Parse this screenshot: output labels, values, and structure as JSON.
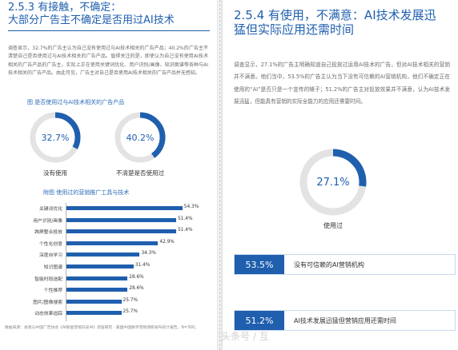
{
  "left": {
    "section_title_line1": "2.5.3 有接触，不确定：",
    "section_title_line2": "大部分广告主不确定是否用过AI技术",
    "paragraph": "调查显示，32.7%的广告主认为自己没有使用过与AI技术相关的广告产品；40.2%的广告主不清楚自己是否使用过与AI技术相关的广告产品。值得关注的是，即使认为自己没有使用AI技术相关的广告产品的广告主，实际上正在使用关键词优化、用户识别/画像、知识图谱等各种与AI技术相关的广告产品。由此可见，广告主对自己是否使用AI技术相关的广告产品并无感知。",
    "figure1_title": "图 是否使用过与AI技术相关的广告产品",
    "donuts": [
      {
        "value_text": "32.7%",
        "fraction": 0.327,
        "caption": "没有使用"
      },
      {
        "value_text": "40.2%",
        "fraction": 0.402,
        "caption": "不清楚是否使用过"
      }
    ],
    "figure2_title": "附图 使用过的营销推广工具与技术",
    "bars": [
      {
        "label": "关键词优化",
        "value": 54.3,
        "value_text": "54.3%"
      },
      {
        "label": "用户识别/画像",
        "value": 51.4,
        "value_text": "51.4%"
      },
      {
        "label": "跨屏整合投放",
        "value": 51.4,
        "value_text": "51.4%"
      },
      {
        "label": "个性化创意",
        "value": 42.9,
        "value_text": "42.9%"
      },
      {
        "label": "深度自学习",
        "value": 34.3,
        "value_text": "34.3%"
      },
      {
        "label": "知识图谱",
        "value": 31.4,
        "value_text": "31.4%"
      },
      {
        "label": "智能时段选配",
        "value": 28.6,
        "value_text": "28.6%"
      },
      {
        "label": "个性推荐",
        "value": 28.6,
        "value_text": "28.6%"
      },
      {
        "label": "图片/图像搜索",
        "value": 25.7,
        "value_text": "25.7%"
      },
      {
        "label": "动态效果追踪",
        "value": 25.7,
        "value_text": "25.7%"
      }
    ],
    "bar_max": 60,
    "footnote": "数据来源：易观与中国广告协会《AI赋能营销白皮书》调查研究 · 美国中国数字营销调研发布统计报告，N=300。"
  },
  "right": {
    "section_title_line1": "2.5.4 有使用，不满意：AI技术发展迅",
    "section_title_line2": "猛但实际应用还需时间",
    "paragraph": "调查显示，27.1%的广告主明确知道自己投放过运用AI技术的广告，但对AI技术相关的营销并不满意。他们当中，53.5%的广告主认为当下没有可信赖的AI营销机构，他们不确定正在使用的“AI”是否只是一个宣传的噱子；51.2%的广告主对投放效果并不满意，认为AI技术发展迅猛，但能真有营销的实际全能力的应用还需要时间。",
    "donut": {
      "value_text": "27.1%",
      "fraction": 0.271,
      "caption": "使用过"
    },
    "stats": [
      {
        "value_text": "53.5%",
        "text": "没有可信赖的AI营销机构"
      },
      {
        "value_text": "51.2%",
        "text": "AI技术发展迅猛但营销应用还需时间"
      }
    ]
  },
  "overlay_text": "头条号 / 互",
  "colors": {
    "accent": "#1f5fae",
    "donut_track": "#e3e3e3"
  }
}
